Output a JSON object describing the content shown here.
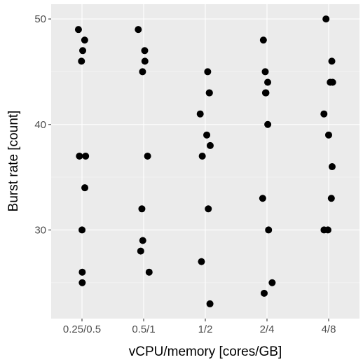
{
  "chart_data": {
    "type": "scatter",
    "title": "",
    "xlabel": "vCPU/memory [cores/GB]",
    "ylabel": "Burst rate [count]",
    "categories": [
      "0.25/0.5",
      "0.5/1",
      "1/2",
      "2/4",
      "4/8"
    ],
    "y_ticks": [
      30,
      40,
      50
    ],
    "ylim": [
      21.6,
      51.4
    ],
    "grid": true,
    "jittered": true,
    "series": [
      {
        "points": [
          {
            "x": "0.25/0.5",
            "y": 49
          },
          {
            "x": "0.25/0.5",
            "y": 48
          },
          {
            "x": "0.25/0.5",
            "y": 47
          },
          {
            "x": "0.25/0.5",
            "y": 46
          },
          {
            "x": "0.25/0.5",
            "y": 37
          },
          {
            "x": "0.25/0.5",
            "y": 37
          },
          {
            "x": "0.25/0.5",
            "y": 34
          },
          {
            "x": "0.25/0.5",
            "y": 30
          },
          {
            "x": "0.25/0.5",
            "y": 26
          },
          {
            "x": "0.25/0.5",
            "y": 25
          },
          {
            "x": "0.5/1",
            "y": 49
          },
          {
            "x": "0.5/1",
            "y": 47
          },
          {
            "x": "0.5/1",
            "y": 46
          },
          {
            "x": "0.5/1",
            "y": 45
          },
          {
            "x": "0.5/1",
            "y": 37
          },
          {
            "x": "0.5/1",
            "y": 32
          },
          {
            "x": "0.5/1",
            "y": 29
          },
          {
            "x": "0.5/1",
            "y": 28
          },
          {
            "x": "0.5/1",
            "y": 26
          },
          {
            "x": "1/2",
            "y": 45
          },
          {
            "x": "1/2",
            "y": 43
          },
          {
            "x": "1/2",
            "y": 43
          },
          {
            "x": "1/2",
            "y": 41
          },
          {
            "x": "1/2",
            "y": 39
          },
          {
            "x": "1/2",
            "y": 38
          },
          {
            "x": "1/2",
            "y": 37
          },
          {
            "x": "1/2",
            "y": 32
          },
          {
            "x": "1/2",
            "y": 27
          },
          {
            "x": "1/2",
            "y": 23
          },
          {
            "x": "2/4",
            "y": 48
          },
          {
            "x": "2/4",
            "y": 45
          },
          {
            "x": "2/4",
            "y": 44
          },
          {
            "x": "2/4",
            "y": 43
          },
          {
            "x": "2/4",
            "y": 43
          },
          {
            "x": "2/4",
            "y": 40
          },
          {
            "x": "2/4",
            "y": 33
          },
          {
            "x": "2/4",
            "y": 30
          },
          {
            "x": "2/4",
            "y": 25
          },
          {
            "x": "2/4",
            "y": 24
          },
          {
            "x": "4/8",
            "y": 50
          },
          {
            "x": "4/8",
            "y": 46
          },
          {
            "x": "4/8",
            "y": 44
          },
          {
            "x": "4/8",
            "y": 44
          },
          {
            "x": "4/8",
            "y": 41
          },
          {
            "x": "4/8",
            "y": 39
          },
          {
            "x": "4/8",
            "y": 36
          },
          {
            "x": "4/8",
            "y": 33
          },
          {
            "x": "4/8",
            "y": 30
          },
          {
            "x": "4/8",
            "y": 30
          }
        ]
      }
    ]
  }
}
